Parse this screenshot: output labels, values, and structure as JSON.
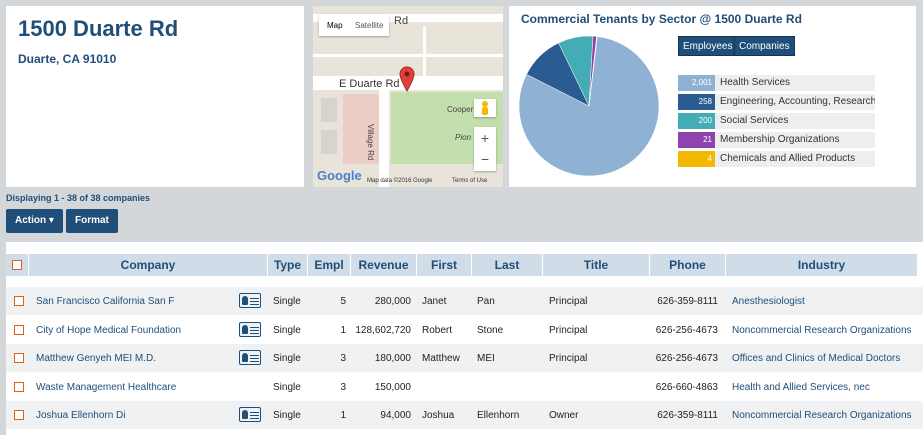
{
  "address": {
    "street": "1500 Duarte Rd",
    "city_state_zip": "Duarte, CA 91010"
  },
  "map": {
    "tabs": [
      "Map",
      "Satellite"
    ],
    "street_main": "E Duarte Rd",
    "street_top": "Rd",
    "street_side": "Village Rd",
    "poi1": "Cooper",
    "poi2": "Pion",
    "zoom_in": "+",
    "zoom_out": "−",
    "google": "Google",
    "map_data": "Map data ©2016 Google",
    "terms": "Terms of Use"
  },
  "chart_data": {
    "type": "pie",
    "title": "Commercial Tenants by Sector @ 1500 Duarte Rd",
    "toggle_buttons": [
      "Employees",
      "Companies"
    ],
    "slices": [
      {
        "label": "Health Services",
        "value": 2001,
        "display": "2,001",
        "color": "#8fb2d4"
      },
      {
        "label": "Engineering, Accounting, Research, and",
        "value": 258,
        "display": "258",
        "color": "#2a5c91"
      },
      {
        "label": "Social Services",
        "value": 200,
        "display": "200",
        "color": "#43acb4"
      },
      {
        "label": "Membership Organizations",
        "value": 21,
        "display": "21",
        "color": "#8e44ad"
      },
      {
        "label": "Chemicals and Allied Products",
        "value": 4,
        "display": "4",
        "color": "#f5b800"
      }
    ]
  },
  "display_count": "Displaying 1 - 38 of 38 companies",
  "toolbar": {
    "action": "Action ▾",
    "format": "Format"
  },
  "table": {
    "headers": [
      "Company",
      "Type",
      "Empl",
      "Revenue",
      "First",
      "Last",
      "Title",
      "Phone",
      "Industry"
    ],
    "rows": [
      {
        "company": "San Francisco California San F",
        "card": true,
        "type": "Single",
        "empl": "5",
        "revenue": "280,000",
        "first": "Janet",
        "last": "Pan",
        "title": "Principal",
        "phone": "626-359-8111",
        "industry": "Anesthesiologist"
      },
      {
        "company": "City of Hope Medical Foundation",
        "card": true,
        "type": "Single",
        "empl": "1",
        "revenue": "128,602,720",
        "first": "Robert",
        "last": "Stone",
        "title": "Principal",
        "phone": "626-256-4673",
        "industry": "Noncommercial Research Organizations"
      },
      {
        "company": "Matthew Genyeh MEI M.D.",
        "card": true,
        "type": "Single",
        "empl": "3",
        "revenue": "180,000",
        "first": "Matthew",
        "last": "MEI",
        "title": "Principal",
        "phone": "626-256-4673",
        "industry": "Offices and Clinics of Medical Doctors"
      },
      {
        "company": "Waste Management Healthcare",
        "card": false,
        "type": "Single",
        "empl": "3",
        "revenue": "150,000",
        "first": "",
        "last": "",
        "title": "",
        "phone": "626-660-4863",
        "industry": "Health and Allied Services, nec"
      },
      {
        "company": "Joshua Ellenhorn Di",
        "card": true,
        "type": "Single",
        "empl": "1",
        "revenue": "94,000",
        "first": "Joshua",
        "last": "Ellenhorn",
        "title": "Owner",
        "phone": "626-359-8111",
        "industry": "Noncommercial Research Organizations"
      }
    ]
  }
}
